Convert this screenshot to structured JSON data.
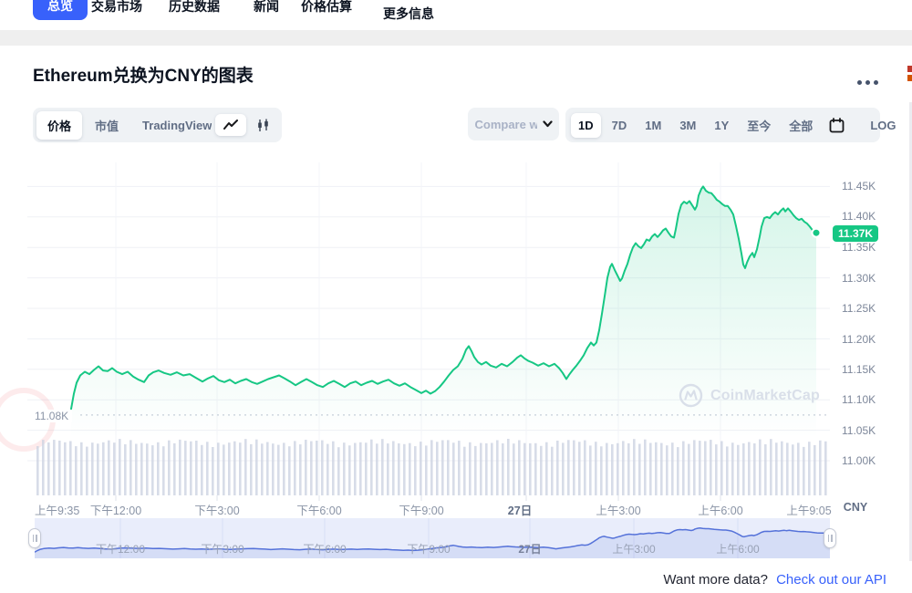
{
  "tabs": {
    "overview": "总览",
    "markets": "交易市场",
    "historical": "历史数据",
    "news": "新闻",
    "estimate": "价格估算",
    "more": "更多信息"
  },
  "header": {
    "title": "Ethereum兑换为CNY的图表"
  },
  "controls": {
    "price": "价格",
    "market_cap": "市值",
    "tradingview": "TradingView",
    "compare": "Compare w",
    "r_1d": "1D",
    "r_7d": "7D",
    "r_1m": "1M",
    "r_3m": "3M",
    "r_1y": "1Y",
    "r_ytd": "至今",
    "r_all": "全部",
    "log": "LOG"
  },
  "chart": {
    "current_price": "11.37K",
    "open_price": "11.08K",
    "unit": "CNY",
    "watermark": "CoinMarketCap",
    "y_ticks": [
      "11.45K",
      "11.40K",
      "11.35K",
      "11.30K",
      "11.25K",
      "11.20K",
      "11.15K",
      "11.10K",
      "11.05K",
      "11.00K"
    ],
    "x_ticks": [
      "上午9:35",
      "下午12:00",
      "下午3:00",
      "下午6:00",
      "下午9:00",
      "27日",
      "上午3:00",
      "上午6:00",
      "上午9:05"
    ]
  },
  "navigator": {
    "x_ticks": [
      "下午12:00",
      "下午3:00",
      "下午6:00",
      "下午9:00",
      "27日",
      "上午3:00",
      "上午6:00"
    ]
  },
  "footer": {
    "prompt": "Want more data?",
    "link": "Check out our API"
  },
  "colors": {
    "accent_green": "#16c784",
    "accent_blue": "#3861fb",
    "nav_line": "#5572d9",
    "volume_bar": "#cdd3e2"
  },
  "chart_data": {
    "type": "line",
    "title": "Ethereum to CNY price chart, 1D range",
    "x_axis": "time, 上午9:35 through 上午9:05 (next day); '27日' marks day boundary",
    "y_axis": {
      "unit": "CNY",
      "min": 11000,
      "max": 11480,
      "tick_step": 50
    },
    "open_price": 11075,
    "last_price": 11374,
    "legend_position": "none",
    "grid": true,
    "series": [
      {
        "name": "ETH/CNY",
        "points": [
          [
            78,
            11085
          ],
          [
            81,
            11110
          ],
          [
            84,
            11128
          ],
          [
            88,
            11140
          ],
          [
            93,
            11146
          ],
          [
            98,
            11142
          ],
          [
            103,
            11149
          ],
          [
            108,
            11155
          ],
          [
            113,
            11148
          ],
          [
            118,
            11147
          ],
          [
            123,
            11152
          ],
          [
            128,
            11146
          ],
          [
            134,
            11142
          ],
          [
            140,
            11146
          ],
          [
            146,
            11138
          ],
          [
            152,
            11133
          ],
          [
            158,
            11129
          ],
          [
            163,
            11140
          ],
          [
            168,
            11145
          ],
          [
            174,
            11148
          ],
          [
            180,
            11144
          ],
          [
            187,
            11141
          ],
          [
            194,
            11145
          ],
          [
            201,
            11140
          ],
          [
            208,
            11142
          ],
          [
            215,
            11136
          ],
          [
            222,
            11130
          ],
          [
            228,
            11135
          ],
          [
            234,
            11139
          ],
          [
            240,
            11132
          ],
          [
            246,
            11129
          ],
          [
            252,
            11133
          ],
          [
            258,
            11127
          ],
          [
            264,
            11131
          ],
          [
            270,
            11134
          ],
          [
            276,
            11129
          ],
          [
            282,
            11126
          ],
          [
            288,
            11130
          ],
          [
            294,
            11134
          ],
          [
            300,
            11137
          ],
          [
            306,
            11140
          ],
          [
            312,
            11135
          ],
          [
            318,
            11130
          ],
          [
            324,
            11124
          ],
          [
            330,
            11129
          ],
          [
            336,
            11134
          ],
          [
            342,
            11129
          ],
          [
            348,
            11124
          ],
          [
            354,
            11121
          ],
          [
            360,
            11127
          ],
          [
            366,
            11131
          ],
          [
            372,
            11126
          ],
          [
            378,
            11121
          ],
          [
            384,
            11127
          ],
          [
            390,
            11130
          ],
          [
            396,
            11124
          ],
          [
            402,
            11128
          ],
          [
            408,
            11131
          ],
          [
            414,
            11126
          ],
          [
            420,
            11130
          ],
          [
            426,
            11133
          ],
          [
            432,
            11127
          ],
          [
            438,
            11123
          ],
          [
            444,
            11127
          ],
          [
            450,
            11121
          ],
          [
            456,
            11116
          ],
          [
            462,
            11111
          ],
          [
            467,
            11115
          ],
          [
            472,
            11110
          ],
          [
            477,
            11114
          ],
          [
            482,
            11121
          ],
          [
            487,
            11130
          ],
          [
            492,
            11140
          ],
          [
            497,
            11149
          ],
          [
            502,
            11155
          ],
          [
            507,
            11167
          ],
          [
            511,
            11182
          ],
          [
            514,
            11188
          ],
          [
            517,
            11180
          ],
          [
            520,
            11170
          ],
          [
            524,
            11162
          ],
          [
            528,
            11158
          ],
          [
            533,
            11162
          ],
          [
            538,
            11156
          ],
          [
            544,
            11153
          ],
          [
            550,
            11159
          ],
          [
            556,
            11155
          ],
          [
            562,
            11162
          ],
          [
            567,
            11169
          ],
          [
            571,
            11173
          ],
          [
            575,
            11168
          ],
          [
            579,
            11164
          ],
          [
            584,
            11161
          ],
          [
            590,
            11156
          ],
          [
            596,
            11160
          ],
          [
            602,
            11155
          ],
          [
            608,
            11159
          ],
          [
            613,
            11152
          ],
          [
            617,
            11144
          ],
          [
            621,
            11134
          ],
          [
            624,
            11141
          ],
          [
            628,
            11149
          ],
          [
            632,
            11156
          ],
          [
            636,
            11164
          ],
          [
            640,
            11173
          ],
          [
            644,
            11185
          ],
          [
            648,
            11194
          ],
          [
            651,
            11189
          ],
          [
            654,
            11194
          ],
          [
            657,
            11214
          ],
          [
            660,
            11241
          ],
          [
            663,
            11270
          ],
          [
            666,
            11300
          ],
          [
            669,
            11318
          ],
          [
            671,
            11323
          ],
          [
            674,
            11313
          ],
          [
            677,
            11304
          ],
          [
            680,
            11295
          ],
          [
            682,
            11299
          ],
          [
            685,
            11312
          ],
          [
            688,
            11323
          ],
          [
            691,
            11338
          ],
          [
            694,
            11350
          ],
          [
            697,
            11357
          ],
          [
            700,
            11352
          ],
          [
            703,
            11349
          ],
          [
            706,
            11355
          ],
          [
            709,
            11363
          ],
          [
            712,
            11361
          ],
          [
            715,
            11368
          ],
          [
            718,
            11372
          ],
          [
            721,
            11367
          ],
          [
            724,
            11372
          ],
          [
            727,
            11378
          ],
          [
            730,
            11381
          ],
          [
            733,
            11374
          ],
          [
            736,
            11368
          ],
          [
            739,
            11366
          ],
          [
            741,
            11380
          ],
          [
            744,
            11405
          ],
          [
            747,
            11420
          ],
          [
            750,
            11425
          ],
          [
            753,
            11422
          ],
          [
            756,
            11426
          ],
          [
            759,
            11419
          ],
          [
            762,
            11412
          ],
          [
            764,
            11418
          ],
          [
            766,
            11435
          ],
          [
            769,
            11446
          ],
          [
            771,
            11450
          ],
          [
            774,
            11443
          ],
          [
            777,
            11440
          ],
          [
            780,
            11439
          ],
          [
            783,
            11434
          ],
          [
            786,
            11428
          ],
          [
            789,
            11425
          ],
          [
            792,
            11421
          ],
          [
            795,
            11418
          ],
          [
            798,
            11418
          ],
          [
            801,
            11412
          ],
          [
            804,
            11404
          ],
          [
            807,
            11385
          ],
          [
            810,
            11364
          ],
          [
            813,
            11340
          ],
          [
            815,
            11322
          ],
          [
            817,
            11316
          ],
          [
            819,
            11325
          ],
          [
            822,
            11335
          ],
          [
            825,
            11341
          ],
          [
            827,
            11334
          ],
          [
            830,
            11347
          ],
          [
            833,
            11368
          ],
          [
            835,
            11384
          ],
          [
            838,
            11398
          ],
          [
            841,
            11400
          ],
          [
            844,
            11398
          ],
          [
            847,
            11404
          ],
          [
            850,
            11408
          ],
          [
            853,
            11404
          ],
          [
            856,
            11410
          ],
          [
            859,
            11414
          ],
          [
            861,
            11409
          ],
          [
            864,
            11414
          ],
          [
            867,
            11409
          ],
          [
            870,
            11403
          ],
          [
            873,
            11398
          ],
          [
            876,
            11395
          ],
          [
            879,
            11397
          ],
          [
            882,
            11392
          ],
          [
            885,
            11389
          ],
          [
            888,
            11384
          ],
          [
            891,
            11378
          ],
          [
            893,
            11376
          ],
          [
            895,
            11374
          ]
        ]
      }
    ],
    "volume": {
      "bars": 145,
      "note": "near-uniform light gray volume bars along bottom of plot"
    }
  }
}
